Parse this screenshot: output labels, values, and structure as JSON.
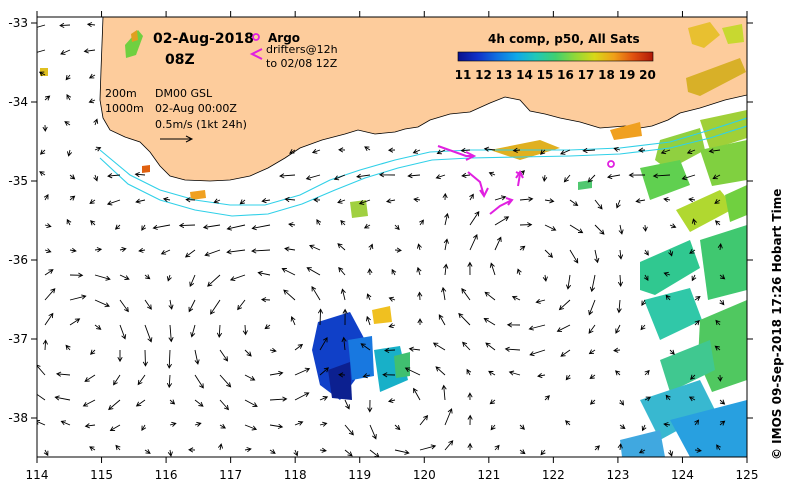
{
  "header": {
    "date": "02-Aug-2018",
    "time": "08Z",
    "argo_label": "Argo",
    "drifters_line1": "drifters@12h",
    "drifters_line2": "to 02/08 12Z"
  },
  "info": {
    "depth_200": "200m",
    "depth_1000": "1000m",
    "product": "DM00 GSL",
    "valid_time": "02-Aug 00:00Z",
    "scale": "0.5m/s (1kt 24h)"
  },
  "colorbar": {
    "title": "4h comp, p50, All Sats",
    "ticks": [
      "11",
      "12",
      "13",
      "14",
      "15",
      "16",
      "17",
      "18",
      "19",
      "20"
    ],
    "colors": [
      "#08108c",
      "#1030c8",
      "#1070e0",
      "#10a8e8",
      "#20c8b8",
      "#40d070",
      "#90d838",
      "#d8d818",
      "#f0a018",
      "#e05010",
      "#b01808"
    ]
  },
  "axes": {
    "x_ticks": [
      "114",
      "115",
      "116",
      "117",
      "118",
      "119",
      "120",
      "121",
      "122",
      "123",
      "124",
      "125"
    ],
    "y_ticks": [
      "-33",
      "-34",
      "-35",
      "-36",
      "-37",
      "-38"
    ]
  },
  "credit": "© IMOS 09-Sep-2018 17:26 Hobart Time",
  "colors": {
    "land": "#fdcc9c",
    "isobath": "#30d0e8",
    "drifter": "#e020e0"
  }
}
